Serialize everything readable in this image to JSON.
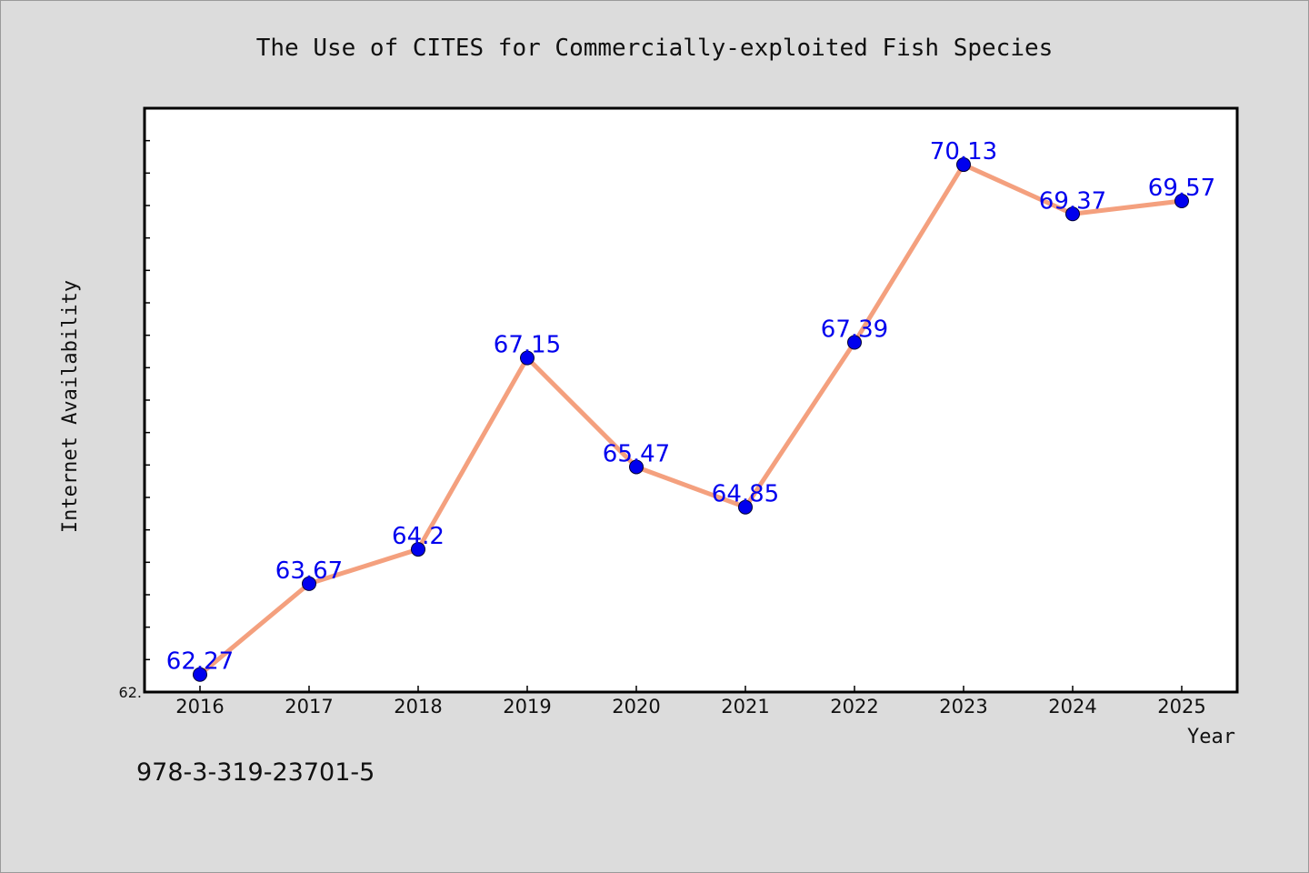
{
  "chart_data": {
    "type": "line",
    "title": "The Use of CITES for Commercially-exploited Fish Species",
    "xlabel": "Year",
    "ylabel": "Internet Availability",
    "categories": [
      "2016",
      "2017",
      "2018",
      "2019",
      "2020",
      "2021",
      "2022",
      "2023",
      "2024",
      "2025"
    ],
    "series": [
      {
        "values": [
          62.27,
          63.67,
          64.2,
          67.15,
          65.47,
          64.85,
          67.39,
          70.13,
          69.37,
          69.57
        ],
        "labels": [
          "62.27",
          "63.67",
          "64.2",
          "67.15",
          "65.47",
          "64.85",
          "67.39",
          "70.13",
          "69.37",
          "69.57"
        ]
      }
    ],
    "ylim": [
      62.0,
      71.0
    ],
    "y_tick_label": "62.",
    "grid": false,
    "legend": "none",
    "colors": {
      "line": "#f4a07e",
      "marker": "#0000ee",
      "data_label": "#0000ee",
      "plot_background": "#ffffff",
      "page_background": "#dcdcdc"
    }
  },
  "footer": {
    "isbn": "978-3-319-23701-5"
  }
}
